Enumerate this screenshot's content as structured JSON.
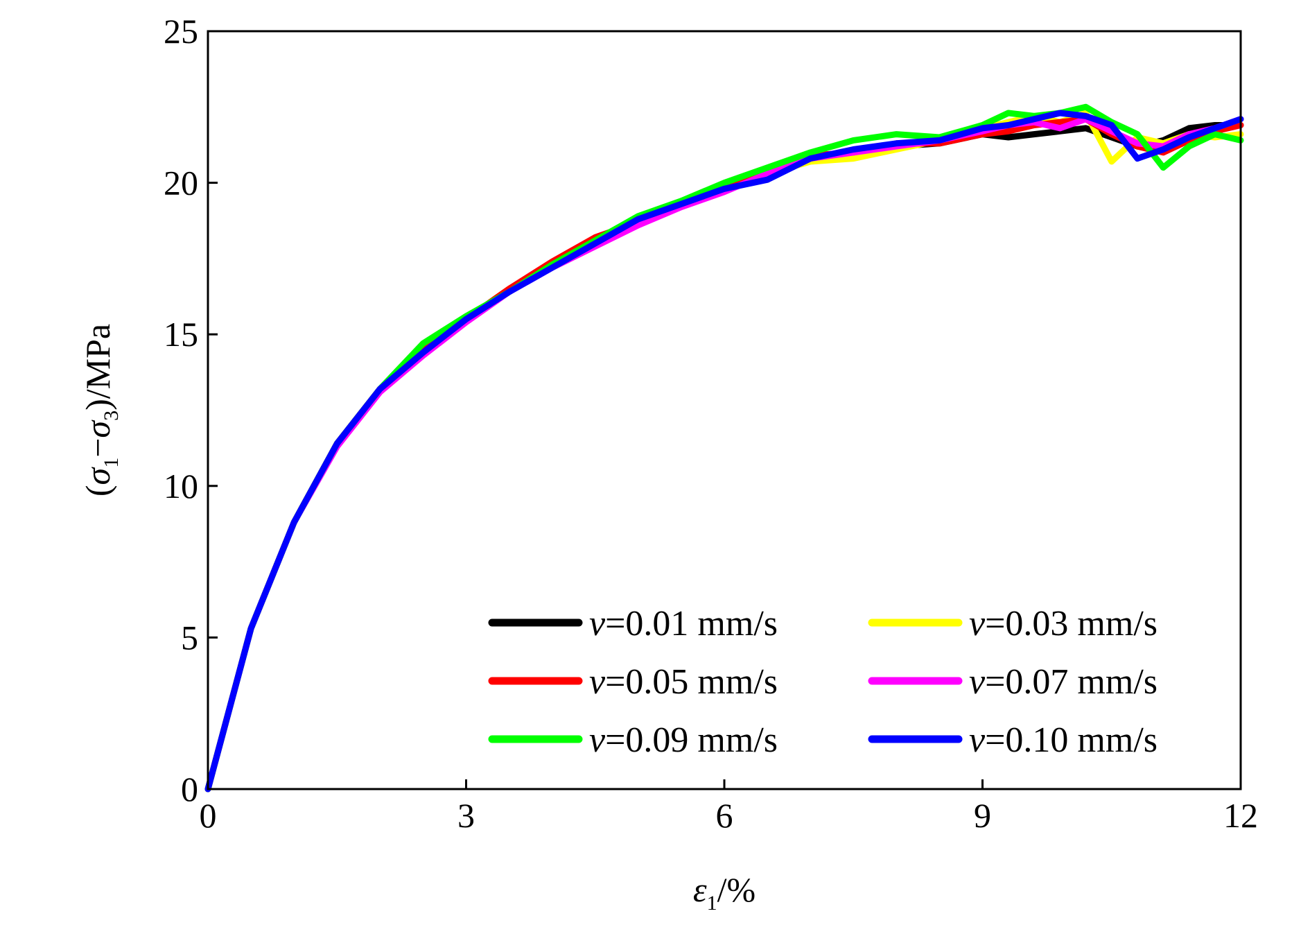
{
  "chart_data": {
    "type": "line",
    "xlabel": "ε1/%",
    "xlabel_parts": {
      "symbol": "ε",
      "sub": "1",
      "rest": "/%"
    },
    "ylabel": "(σ1−σ3)/MPa",
    "ylabel_parts": {
      "open": "(",
      "s1": "σ",
      "sub1": "1",
      "minus": "−",
      "s3": "σ",
      "sub3": "3",
      "rest": ")/MPa"
    },
    "xlim": [
      0,
      12
    ],
    "ylim": [
      0,
      25
    ],
    "xticks": [
      0,
      3,
      6,
      9,
      12
    ],
    "yticks": [
      0,
      5,
      10,
      15,
      20,
      25
    ],
    "grid": false,
    "legend_position": "bottom-right",
    "legend_columns": 2,
    "series": [
      {
        "name": "v=0.01 mm/s",
        "name_symbol": "v",
        "name_rest": "=0.01 mm/s",
        "color": "#000000",
        "x": [
          0,
          0.5,
          1.0,
          1.5,
          2.0,
          2.5,
          3.0,
          3.5,
          4.0,
          4.5,
          5.0,
          5.5,
          6.0,
          6.5,
          7.0,
          7.5,
          8.0,
          8.5,
          9.0,
          9.3,
          9.6,
          9.9,
          10.2,
          10.5,
          10.8,
          11.1,
          11.4,
          11.7,
          12.0
        ],
        "y": [
          0,
          5.3,
          8.8,
          11.4,
          13.2,
          14.5,
          15.5,
          16.4,
          17.3,
          18.0,
          18.7,
          19.3,
          19.8,
          20.3,
          20.8,
          21.0,
          21.2,
          21.3,
          21.6,
          21.5,
          21.6,
          21.7,
          21.8,
          21.5,
          21.2,
          21.4,
          21.8,
          21.9,
          21.9
        ]
      },
      {
        "name": "v=0.03 mm/s",
        "name_symbol": "v",
        "name_rest": "=0.03 mm/s",
        "color": "#ffff00",
        "x": [
          0,
          0.5,
          1.0,
          1.5,
          2.0,
          2.5,
          3.0,
          3.5,
          4.0,
          4.5,
          5.0,
          5.5,
          6.0,
          6.5,
          7.0,
          7.5,
          8.0,
          8.5,
          9.0,
          9.3,
          9.6,
          9.9,
          10.2,
          10.5,
          10.8,
          11.1,
          11.4,
          11.7,
          12.0
        ],
        "y": [
          0,
          5.3,
          8.8,
          11.4,
          13.2,
          14.6,
          15.5,
          16.5,
          17.3,
          18.0,
          18.7,
          19.3,
          19.8,
          20.3,
          20.7,
          20.8,
          21.1,
          21.4,
          21.8,
          22.0,
          22.2,
          22.0,
          22.3,
          20.7,
          21.5,
          21.3,
          21.6,
          21.5,
          21.6
        ]
      },
      {
        "name": "v=0.05 mm/s",
        "name_symbol": "v",
        "name_rest": "=0.05 mm/s",
        "color": "#ff0000",
        "x": [
          0,
          0.5,
          1.0,
          1.5,
          2.0,
          2.5,
          3.0,
          3.5,
          4.0,
          4.5,
          5.0,
          5.5,
          6.0,
          6.5,
          7.0,
          7.5,
          8.0,
          8.5,
          9.0,
          9.3,
          9.6,
          9.9,
          10.2,
          10.5,
          10.8,
          11.1,
          11.4,
          11.7,
          12.0
        ],
        "y": [
          0,
          5.3,
          8.8,
          11.4,
          13.2,
          14.5,
          15.5,
          16.5,
          17.4,
          18.2,
          18.7,
          19.3,
          19.8,
          20.4,
          20.9,
          21.0,
          21.3,
          21.3,
          21.6,
          21.7,
          21.9,
          22.0,
          22.1,
          21.6,
          21.2,
          21.0,
          21.4,
          21.7,
          21.9
        ]
      },
      {
        "name": "v=0.07 mm/s",
        "name_symbol": "v",
        "name_rest": "=0.07 mm/s",
        "color": "#ff00ff",
        "x": [
          0,
          0.5,
          1.0,
          1.5,
          2.0,
          2.5,
          3.0,
          3.5,
          4.0,
          4.5,
          5.0,
          5.5,
          6.0,
          6.5,
          7.0,
          7.5,
          8.0,
          8.5,
          9.0,
          9.3,
          9.6,
          9.9,
          10.2,
          10.5,
          10.8,
          11.1,
          11.4,
          11.7,
          12.0
        ],
        "y": [
          0,
          5.3,
          8.8,
          11.3,
          13.1,
          14.3,
          15.4,
          16.4,
          17.2,
          17.9,
          18.6,
          19.2,
          19.7,
          20.3,
          20.8,
          21.0,
          21.2,
          21.4,
          21.7,
          21.9,
          22.0,
          21.8,
          22.1,
          21.7,
          21.3,
          21.2,
          21.6,
          21.8,
          22.1
        ]
      },
      {
        "name": "v=0.09 mm/s",
        "name_symbol": "v",
        "name_rest": "=0.09 mm/s",
        "color": "#00ff00",
        "x": [
          0,
          0.5,
          1.0,
          1.5,
          2.0,
          2.5,
          3.0,
          3.5,
          4.0,
          4.5,
          5.0,
          5.5,
          6.0,
          6.5,
          7.0,
          7.5,
          8.0,
          8.5,
          9.0,
          9.3,
          9.6,
          9.9,
          10.2,
          10.5,
          10.8,
          11.1,
          11.4,
          11.7,
          12.0
        ],
        "y": [
          0,
          5.3,
          8.8,
          11.4,
          13.2,
          14.7,
          15.6,
          16.4,
          17.3,
          18.1,
          18.9,
          19.4,
          20.0,
          20.5,
          21.0,
          21.4,
          21.6,
          21.5,
          21.9,
          22.3,
          22.2,
          22.3,
          22.5,
          22.0,
          21.6,
          20.5,
          21.2,
          21.6,
          21.4
        ]
      },
      {
        "name": "v=0.10 mm/s",
        "name_symbol": "v",
        "name_rest": "=0.10 mm/s",
        "color": "#0000ff",
        "x": [
          0,
          0.5,
          1.0,
          1.5,
          2.0,
          2.5,
          3.0,
          3.5,
          4.0,
          4.5,
          5.0,
          5.5,
          6.0,
          6.5,
          7.0,
          7.5,
          8.0,
          8.5,
          9.0,
          9.3,
          9.6,
          9.9,
          10.2,
          10.5,
          10.8,
          11.1,
          11.4,
          11.7,
          12.0
        ],
        "y": [
          0,
          5.3,
          8.8,
          11.4,
          13.2,
          14.4,
          15.5,
          16.4,
          17.2,
          18.0,
          18.8,
          19.3,
          19.8,
          20.1,
          20.8,
          21.1,
          21.3,
          21.4,
          21.8,
          21.9,
          22.1,
          22.3,
          22.2,
          21.9,
          20.8,
          21.1,
          21.5,
          21.8,
          22.1
        ]
      }
    ]
  }
}
